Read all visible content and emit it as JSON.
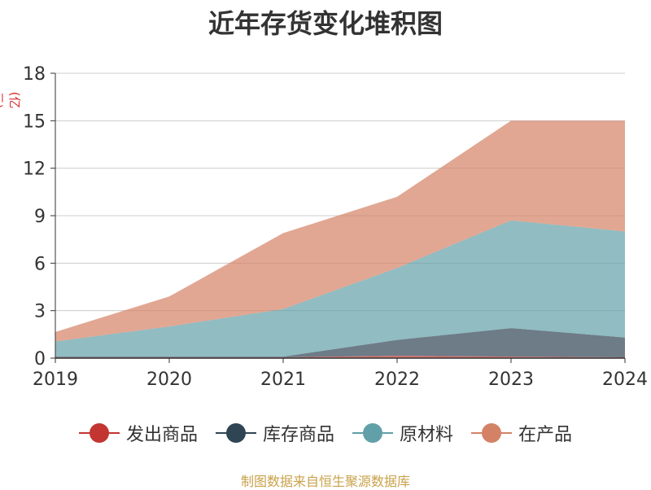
{
  "chart_data": {
    "type": "area",
    "stacked": true,
    "title": "近年存货变化堆积图",
    "unit": "(亿元)",
    "categories": [
      "2019",
      "2020",
      "2021",
      "2022",
      "2023",
      "2024"
    ],
    "ylim": [
      0,
      18
    ],
    "yticks": [
      "0",
      "3",
      "6",
      "9",
      "12",
      "15",
      "18"
    ],
    "grid": true,
    "legend_position": "bottom",
    "series": [
      {
        "name": "发出商品",
        "color": "#c23531",
        "values": [
          0.05,
          0.05,
          0.05,
          0.15,
          0.1,
          0.05
        ]
      },
      {
        "name": "库存商品",
        "color": "#2f4554",
        "values": [
          0.05,
          0.05,
          0.05,
          1.0,
          1.8,
          1.25
        ]
      },
      {
        "name": "原材料",
        "color": "#61a0a8",
        "values": [
          0.95,
          1.9,
          3.0,
          4.55,
          6.8,
          6.7
        ]
      },
      {
        "name": "在产品",
        "color": "#d48265",
        "values": [
          0.6,
          1.9,
          4.8,
          4.5,
          6.3,
          7.0
        ]
      }
    ],
    "source": "制图数据来自恒生聚源数据库"
  }
}
